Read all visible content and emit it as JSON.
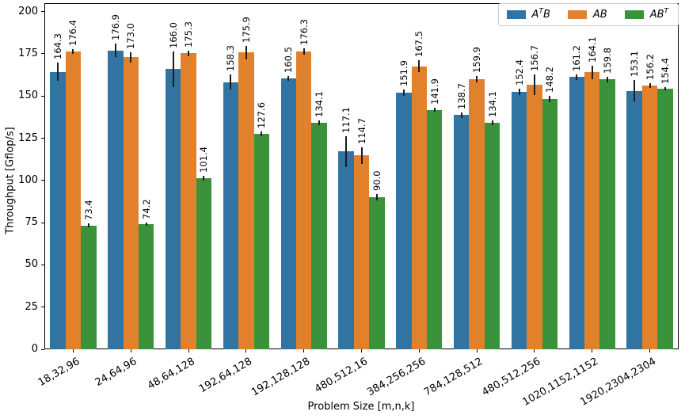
{
  "chart_data": {
    "type": "bar",
    "title": "",
    "xlabel": "Problem Size [m,n,k]",
    "ylabel": "Throughput [Gflop/s]",
    "ylim": [
      0,
      205
    ],
    "yticks": [
      0,
      25,
      50,
      75,
      100,
      125,
      150,
      175,
      200
    ],
    "grid": false,
    "legend_position": "upper right",
    "bar_value_labels": true,
    "error_bar_color": "#1c1c1c",
    "categories": [
      "18,32,96",
      "24,64,96",
      "48,64,128",
      "192,64,128",
      "192,128,128",
      "480,512,16",
      "384,256,256",
      "784,128,512",
      "480,512,256",
      "1020,1152,1152",
      "1920,2304,2304"
    ],
    "series": [
      {
        "name": "ATB",
        "label_parts": {
          "pre": "A",
          "sup": "T",
          "post": "B"
        },
        "color": "#3274a1",
        "values": [
          164.3,
          176.9,
          166.0,
          158.3,
          160.5,
          117.1,
          151.9,
          138.7,
          152.4,
          161.2,
          153.1
        ],
        "errors": [
          5.5,
          4.0,
          10.5,
          4.5,
          1.5,
          9.0,
          2.0,
          1.5,
          2.0,
          1.5,
          6.5
        ]
      },
      {
        "name": "AB",
        "label_parts": {
          "pre": "AB",
          "sup": "",
          "post": ""
        },
        "color": "#e1812c",
        "values": [
          176.4,
          173.0,
          175.3,
          175.9,
          176.3,
          114.7,
          167.5,
          159.9,
          156.7,
          164.1,
          156.2
        ],
        "errors": [
          1.5,
          3.0,
          1.5,
          4.0,
          2.0,
          5.0,
          3.5,
          2.0,
          6.0,
          4.0,
          1.5
        ]
      },
      {
        "name": "ABT",
        "label_parts": {
          "pre": "AB",
          "sup": "T",
          "post": ""
        },
        "color": "#3a923a",
        "values": [
          73.4,
          74.2,
          101.4,
          127.6,
          134.1,
          90.0,
          141.9,
          134.1,
          148.2,
          159.8,
          154.4
        ],
        "errors": [
          1.0,
          1.0,
          1.5,
          1.5,
          1.5,
          2.0,
          1.0,
          1.5,
          2.0,
          1.5,
          1.0
        ]
      }
    ]
  }
}
